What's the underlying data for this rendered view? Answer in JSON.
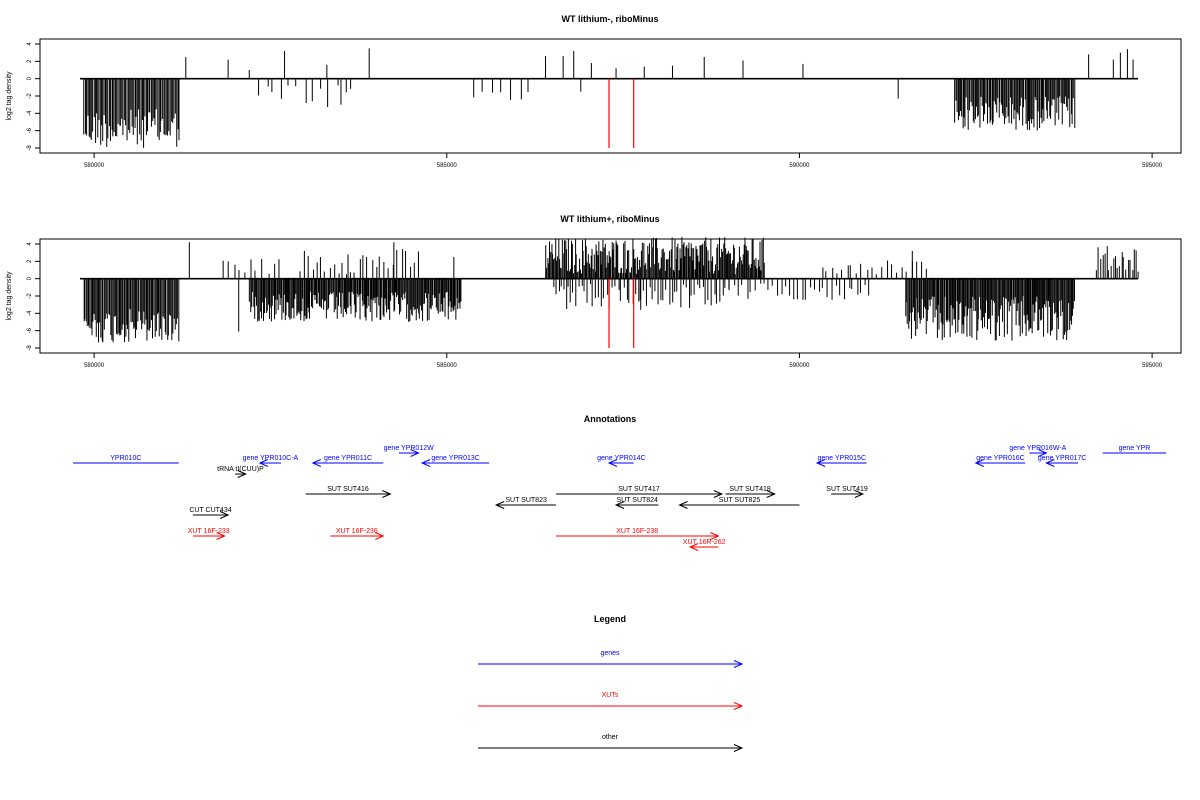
{
  "panels": [
    {
      "title": "WT lithium-, riboMinus",
      "ylabel": "log2 tag density",
      "chart_data": {
        "type": "bar",
        "title": "WT lithium-, riboMinus",
        "ylabel": "log2 tag density",
        "xlim": [
          579800,
          594800
        ],
        "ylim": [
          -8,
          4
        ],
        "xticks": [
          580000,
          585000,
          590000,
          595000
        ],
        "yticks": [
          -8,
          -6,
          -4,
          -2,
          0,
          2,
          4
        ],
        "highlight_positions": [
          587300,
          587650
        ],
        "clusters": [
          {
            "range": [
              579850,
              581200
            ],
            "sign": -1,
            "min": 3.5,
            "max": 8,
            "step": 18
          },
          {
            "range": [
              582300,
              583700
            ],
            "sign": -1,
            "min": 0.5,
            "max": 3.5,
            "step": 110
          },
          {
            "range": [
              585300,
              586200
            ],
            "sign": -1,
            "min": 1,
            "max": 3,
            "step": 140
          },
          {
            "range": [
              592200,
              593900
            ],
            "sign": -1,
            "min": 2,
            "max": 6,
            "step": 16
          }
        ],
        "spikes": [
          [
            581300,
            2.5
          ],
          [
            581900,
            2.2
          ],
          [
            582200,
            1.0
          ],
          [
            582700,
            3.2
          ],
          [
            583300,
            1.6
          ],
          [
            583900,
            3.5
          ],
          [
            586400,
            2.6
          ],
          [
            586650,
            2.6
          ],
          [
            586800,
            3.2
          ],
          [
            587050,
            1.8
          ],
          [
            587400,
            1.2
          ],
          [
            587800,
            1.4
          ],
          [
            588200,
            1.5
          ],
          [
            588650,
            2.5
          ],
          [
            589200,
            2.1
          ],
          [
            590050,
            1.7
          ],
          [
            594100,
            2.8
          ],
          [
            594450,
            2.2
          ],
          [
            594550,
            3.0
          ],
          [
            594650,
            3.4
          ],
          [
            594730,
            2.2
          ],
          [
            583500,
            -3.0
          ],
          [
            586900,
            -1.5
          ],
          [
            591400,
            -2.3
          ]
        ]
      }
    },
    {
      "title": "WT lithium+, riboMinus",
      "ylabel": "log2 tag density",
      "chart_data": {
        "type": "bar",
        "title": "WT lithium+, riboMinus",
        "ylabel": "log2 tag density",
        "xlim": [
          579800,
          594800
        ],
        "ylim": [
          -8,
          4
        ],
        "xticks": [
          580000,
          585000,
          590000,
          595000
        ],
        "yticks": [
          -8,
          -6,
          -4,
          -2,
          0,
          2,
          4
        ],
        "highlight_positions": [
          587300,
          587650
        ],
        "clusters": [
          {
            "range": [
              579850,
              581200
            ],
            "sign": -1,
            "min": 3.5,
            "max": 7.5,
            "step": 16
          },
          {
            "range": [
              582200,
              585200
            ],
            "sign": -1,
            "min": 1.5,
            "max": 5,
            "step": 14
          },
          {
            "range": [
              581800,
              582600
            ],
            "sign": 1,
            "min": 0.5,
            "max": 2.4,
            "step": 80
          },
          {
            "range": [
              582900,
              584600
            ],
            "sign": 1,
            "min": 0.5,
            "max": 3.5,
            "step": 60
          },
          {
            "range": [
              586400,
              589500
            ],
            "sign": 1,
            "min": 0.5,
            "max": 4.8,
            "step": 14
          },
          {
            "range": [
              586500,
              589000
            ],
            "sign": -1,
            "min": 0.5,
            "max": 3.5,
            "step": 40
          },
          {
            "range": [
              589000,
              591000
            ],
            "sign": -1,
            "min": 0.5,
            "max": 2.5,
            "step": 60
          },
          {
            "range": [
              591500,
              593900
            ],
            "sign": -1,
            "min": 2,
            "max": 7.2,
            "step": 14
          },
          {
            "range": [
              590300,
              591800
            ],
            "sign": 1,
            "min": 0.5,
            "max": 2.5,
            "step": 70
          },
          {
            "range": [
              594200,
              594800
            ],
            "sign": 1,
            "min": 0.8,
            "max": 3.8,
            "step": 30
          }
        ],
        "spikes": [
          [
            581350,
            4.2
          ],
          [
            583600,
            2.8
          ],
          [
            584250,
            4.2
          ],
          [
            585100,
            2.5
          ],
          [
            591600,
            3.2
          ],
          [
            582050,
            -6.1
          ],
          [
            586700,
            -3.5
          ],
          [
            587750,
            -3.6
          ]
        ]
      }
    }
  ],
  "annotations": {
    "title": "Annotations",
    "features": [
      {
        "label": "YPR010C",
        "type": "gene",
        "start": 579700,
        "end": 581200,
        "strand": "-",
        "arrow": false,
        "row": 1
      },
      {
        "label": "gene YPR010C-A",
        "type": "gene",
        "start": 582350,
        "end": 582650,
        "strand": "-",
        "row": 1
      },
      {
        "label": "gene YPR011C",
        "type": "gene",
        "start": 583100,
        "end": 584100,
        "strand": "-",
        "row": 1
      },
      {
        "label": "gene YPR012W",
        "type": "gene",
        "start": 584320,
        "end": 584600,
        "strand": "+",
        "row": 0
      },
      {
        "label": "gene YPR013C",
        "type": "gene",
        "start": 584650,
        "end": 585600,
        "strand": "-",
        "row": 1
      },
      {
        "label": "gene YPR014C",
        "type": "gene",
        "start": 587300,
        "end": 587650,
        "strand": "-",
        "row": 1
      },
      {
        "label": "gene YPR015C",
        "type": "gene",
        "start": 590250,
        "end": 590950,
        "strand": "-",
        "row": 1
      },
      {
        "label": "gene YPR016C",
        "type": "gene",
        "start": 592500,
        "end": 593200,
        "strand": "-",
        "row": 1
      },
      {
        "label": "gene YPR016W-A",
        "type": "gene",
        "start": 593260,
        "end": 593500,
        "strand": "+",
        "row": 0
      },
      {
        "label": "gene YPR017C",
        "type": "gene",
        "start": 593500,
        "end": 593950,
        "strand": "-",
        "row": 1
      },
      {
        "label": "gene YPR",
        "type": "gene",
        "start": 594300,
        "end": 595200,
        "strand": "-",
        "arrow": false,
        "row": 0
      },
      {
        "label": "tRNA tI(CUU)P",
        "type": "other",
        "start": 582000,
        "end": 582150,
        "strand": "+",
        "row": 2
      },
      {
        "label": "SUT SUT416",
        "type": "other",
        "start": 583000,
        "end": 584200,
        "strand": "+",
        "row": 3
      },
      {
        "label": "SUT SUT823",
        "type": "other",
        "start": 585700,
        "end": 586550,
        "strand": "-",
        "row": 4
      },
      {
        "label": "SUT SUT417",
        "type": "other",
        "start": 586550,
        "end": 588900,
        "strand": "+",
        "row": 3
      },
      {
        "label": "SUT SUT418",
        "type": "other",
        "start": 588950,
        "end": 589650,
        "strand": "+",
        "row": 3
      },
      {
        "label": "SUT SUT824",
        "type": "other",
        "start": 587400,
        "end": 588000,
        "strand": "-",
        "row": 4
      },
      {
        "label": "SUT SUT825",
        "type": "other",
        "start": 588300,
        "end": 590000,
        "strand": "-",
        "row": 4
      },
      {
        "label": "SUT SUT419",
        "type": "other",
        "start": 590450,
        "end": 590900,
        "strand": "+",
        "row": 3
      },
      {
        "label": "CUT CUT434",
        "type": "other",
        "start": 581400,
        "end": 581900,
        "strand": "+",
        "row": 5
      },
      {
        "label": "XUT 16F-233",
        "type": "xut",
        "start": 581400,
        "end": 581850,
        "strand": "+",
        "row": 6
      },
      {
        "label": "XUT 16F-236",
        "type": "xut",
        "start": 583350,
        "end": 584100,
        "strand": "+",
        "row": 6
      },
      {
        "label": "XUT 16F-238",
        "type": "xut",
        "start": 586550,
        "end": 588850,
        "strand": "+",
        "row": 6
      },
      {
        "label": "XUT 16R-262",
        "type": "xut",
        "start": 588450,
        "end": 588850,
        "strand": "-",
        "row": 7
      }
    ]
  },
  "legend": {
    "title": "Legend",
    "items": [
      {
        "label": "genes",
        "color": "#0000ff"
      },
      {
        "label": "XUTs",
        "color": "#ff0000"
      },
      {
        "label": "other",
        "color": "#000000"
      }
    ]
  },
  "colors": {
    "gene": "#0000ff",
    "xut": "#ff0000",
    "other": "#000000",
    "highlight": "#ff0000",
    "axis": "#000000"
  }
}
